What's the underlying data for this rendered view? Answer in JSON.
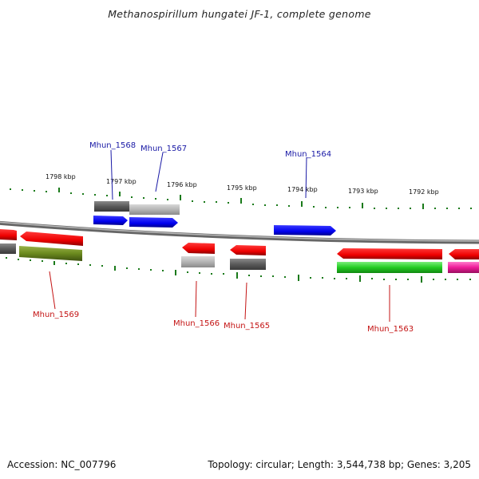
{
  "title": "Methanospirillum hungatei JF-1, complete genome",
  "footer": {
    "accession": "Accession: NC_007796",
    "summary": "Topology: circular; Length: 3,544,738 bp; Genes: 3,205"
  },
  "scale_labels": [
    "1798 kbp",
    "1797 kbp",
    "1796 kbp",
    "1795 kbp",
    "1794 kbp",
    "1793 kbp",
    "1792 kbp"
  ],
  "genes": [
    {
      "name": "Mhun_1568",
      "color": "#1a1aa6"
    },
    {
      "name": "Mhun_1567",
      "color": "#1a1aa6"
    },
    {
      "name": "Mhun_1564",
      "color": "#1a1aa6"
    },
    {
      "name": "Mhun_1569",
      "color": "#c41414"
    },
    {
      "name": "Mhun_1566",
      "color": "#c41414"
    },
    {
      "name": "Mhun_1565",
      "color": "#c41414"
    },
    {
      "name": "Mhun_1563",
      "color": "#c41414"
    }
  ],
  "colors": {
    "forward_gene": "#0000ff",
    "reverse_gene": "#ff0000",
    "tick": "#1a7a1a",
    "backbone": "#888888"
  }
}
